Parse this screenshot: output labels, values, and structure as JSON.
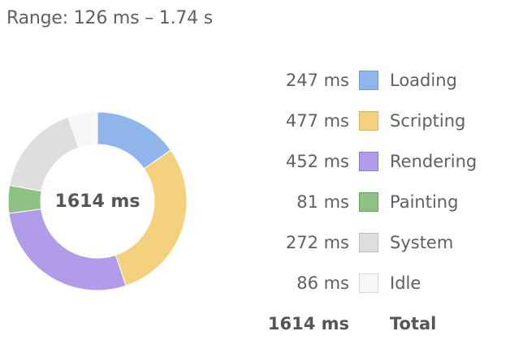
{
  "range_text": "Range: 126 ms – 1.74 s",
  "center_total": "1614 ms",
  "legend": [
    {
      "value": "247 ms",
      "label": "Loading",
      "ms": 247,
      "fill": "#8fb5ea",
      "stroke": "#6f9ad8"
    },
    {
      "value": "477 ms",
      "label": "Scripting",
      "ms": 477,
      "fill": "#f3d17f",
      "stroke": "#dcb55a"
    },
    {
      "value": "452 ms",
      "label": "Rendering",
      "ms": 452,
      "fill": "#b09ce9",
      "stroke": "#8e78d6"
    },
    {
      "value": "81 ms",
      "label": "Painting",
      "ms": 81,
      "fill": "#8dc283",
      "stroke": "#6aa360"
    },
    {
      "value": "272 ms",
      "label": "System",
      "ms": 272,
      "fill": "#dedede",
      "stroke": "#bdbdbd"
    },
    {
      "value": "86 ms",
      "label": "Idle",
      "ms": 86,
      "fill": "#f7f7f7",
      "stroke": "#d6d6d6"
    }
  ],
  "total": {
    "value": "1614 ms",
    "label": "Total"
  }
}
